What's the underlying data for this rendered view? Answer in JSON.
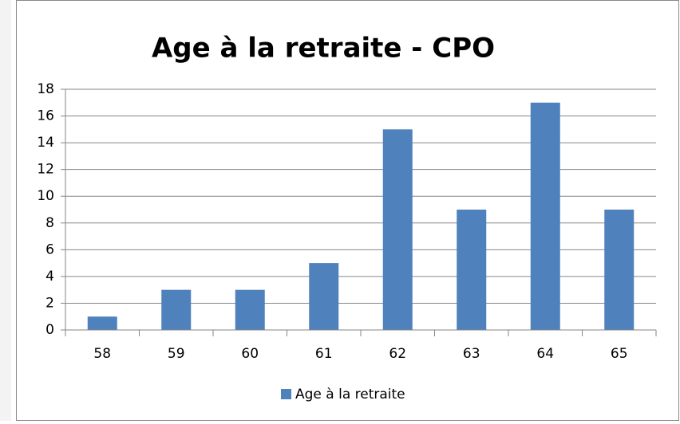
{
  "chart_data": {
    "type": "bar",
    "title": "Age à la retraite - CPO",
    "categories": [
      "58",
      "59",
      "60",
      "61",
      "62",
      "63",
      "64",
      "65"
    ],
    "series": [
      {
        "name": "Age à la retraite",
        "color": "#4f81bd",
        "values": [
          1,
          3,
          3,
          5,
          15,
          9,
          17,
          9
        ]
      }
    ],
    "ylim": [
      0,
      18
    ],
    "yticks": [
      0,
      2,
      4,
      6,
      8,
      10,
      12,
      14,
      16,
      18
    ],
    "grid": true,
    "legend": "bottom"
  }
}
